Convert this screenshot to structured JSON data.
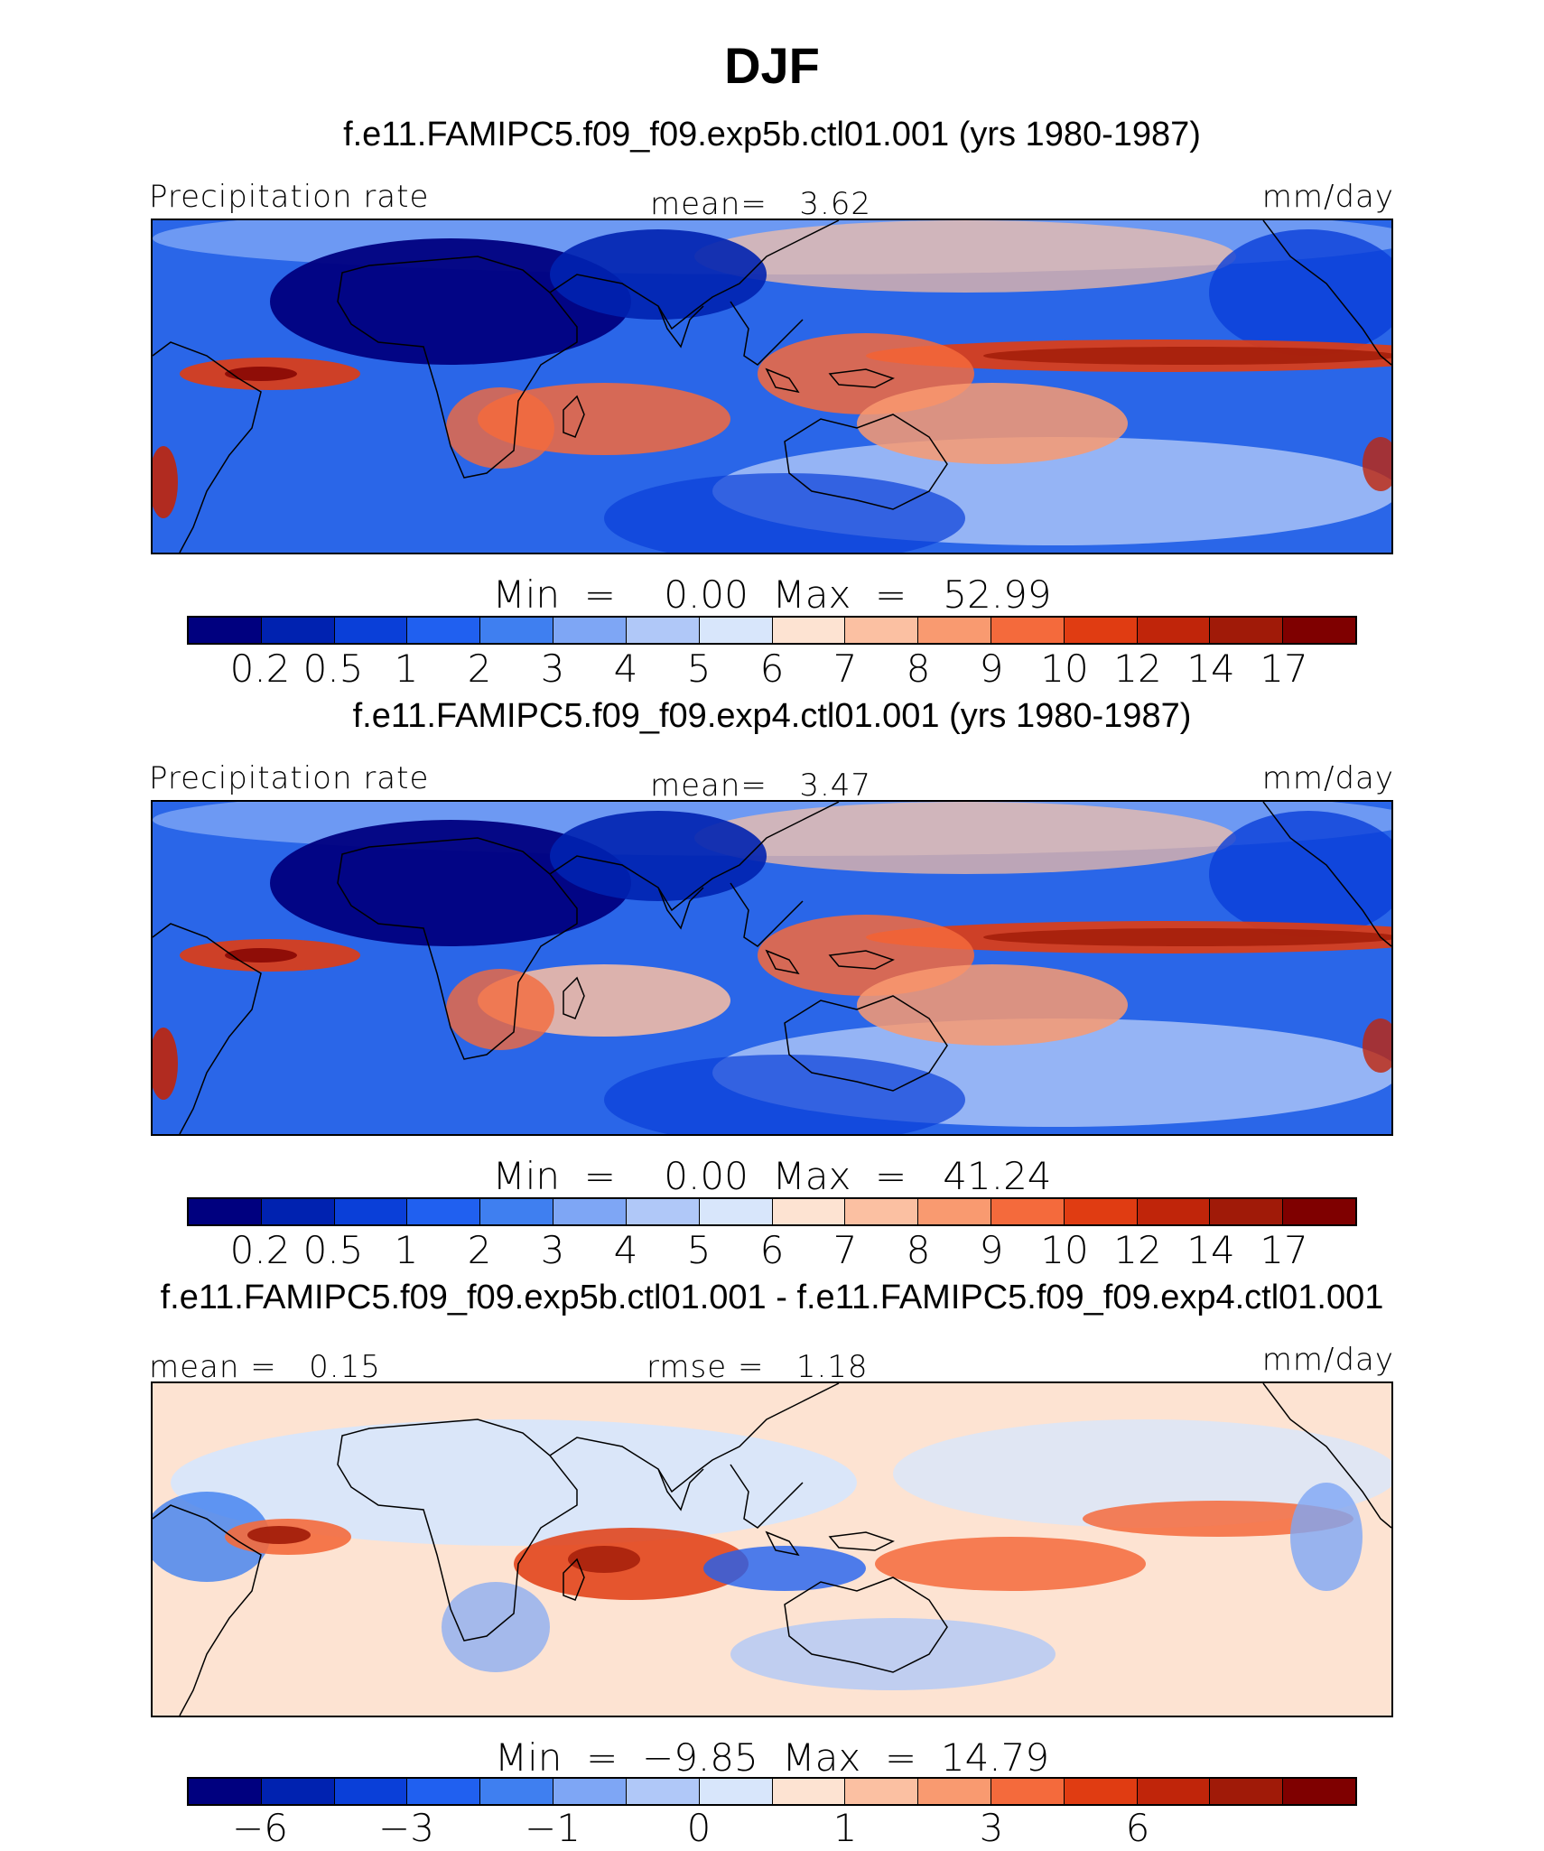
{
  "title": "DJF",
  "panels": [
    {
      "title": "f.e11.FAMIPC5.f09_f09.exp5b.ctl01.001 (yrs 1980-1987)",
      "left_label": "Precipitation rate",
      "center_label": "mean=   3.62",
      "units": "mm/day",
      "minmax": "Min  =    0.00  Max  =   52.99"
    },
    {
      "title": "f.e11.FAMIPC5.f09_f09.exp4.ctl01.001 (yrs 1980-1987)",
      "left_label": "Precipitation rate",
      "center_label": "mean=   3.47",
      "units": "mm/day",
      "minmax": "Min  =    0.00  Max  =   41.24"
    },
    {
      "title": "f.e11.FAMIPC5.f09_f09.exp5b.ctl01.001 - f.e11.FAMIPC5.f09_f09.exp4.ctl01.001",
      "left_label": "mean =   0.15",
      "center_label": "rmse =   1.18",
      "units": "mm/day",
      "minmax": "Min  =  −9.85  Max  =  14.79"
    }
  ],
  "chart_data": [
    {
      "type": "heatmap",
      "title": "f.e11.FAMIPC5.f09_f09.exp5b.ctl01.001 (yrs 1980-1987)",
      "variable": "Precipitation rate",
      "units": "mm/day",
      "mean": 3.62,
      "min": 0.0,
      "max": 52.99,
      "colorbar_levels": [
        "0.2",
        "0.5",
        "1",
        "2",
        "3",
        "4",
        "5",
        "6",
        "7",
        "8",
        "9",
        "10",
        "12",
        "14",
        "17"
      ]
    },
    {
      "type": "heatmap",
      "title": "f.e11.FAMIPC5.f09_f09.exp4.ctl01.001 (yrs 1980-1987)",
      "variable": "Precipitation rate",
      "units": "mm/day",
      "mean": 3.47,
      "min": 0.0,
      "max": 41.24,
      "colorbar_levels": [
        "0.2",
        "0.5",
        "1",
        "2",
        "3",
        "4",
        "5",
        "6",
        "7",
        "8",
        "9",
        "10",
        "12",
        "14",
        "17"
      ]
    },
    {
      "type": "heatmap",
      "title": "f.e11.FAMIPC5.f09_f09.exp5b.ctl01.001 - f.e11.FAMIPC5.f09_f09.exp4.ctl01.001",
      "units": "mm/day",
      "mean": 0.15,
      "rmse": 1.18,
      "min": -9.85,
      "max": 14.79,
      "colorbar_levels": [
        "−6",
        "−3",
        "−1",
        "0",
        "1",
        "3",
        "6"
      ]
    }
  ],
  "colors": {
    "scale": [
      "#00007f",
      "#0022b0",
      "#0a3fd8",
      "#2060f0",
      "#3f7ff0",
      "#7ea6f5",
      "#b0c8f8",
      "#d8e6fb",
      "#fde3d2",
      "#fbc0a2",
      "#f99a70",
      "#f46a3c",
      "#e03c12",
      "#c0250a",
      "#a01a08",
      "#7f0000"
    ]
  }
}
